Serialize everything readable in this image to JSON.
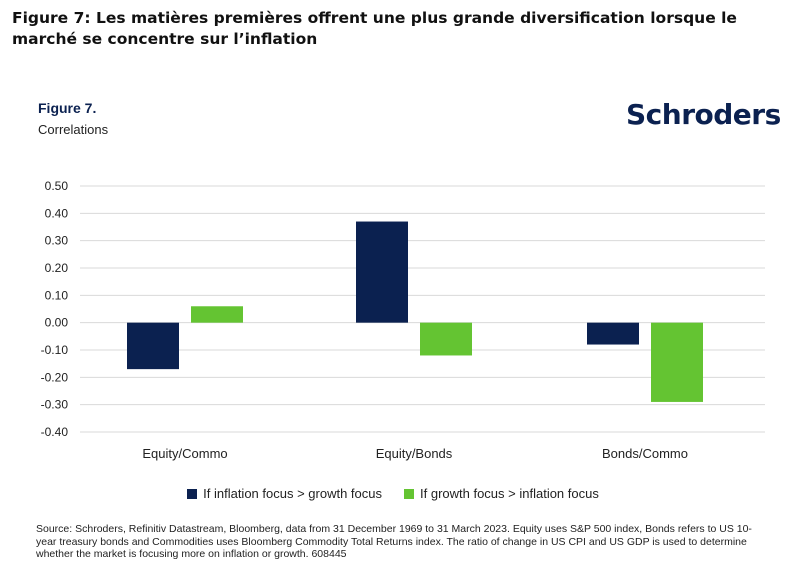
{
  "page_title": "Figure 7: Les matières premières offrent une plus grande diversification lorsque le marché se concentre sur l’inflation",
  "figure_label": "Figure 7.",
  "figure_subtitle": "Correlations",
  "brand": "Schroders",
  "colors": {
    "inflation": "#0b2150",
    "growth": "#64c432",
    "grid": "#d9d9d9",
    "brand": "#0b2150"
  },
  "chart_data": {
    "type": "bar",
    "title": "Correlations",
    "categories": [
      "Equity/Commo",
      "Equity/Bonds",
      "Bonds/Commo"
    ],
    "series": [
      {
        "name": "If inflation focus > growth focus",
        "values": [
          -0.17,
          0.37,
          -0.08
        ]
      },
      {
        "name": "If growth focus > inflation focus",
        "values": [
          0.06,
          -0.12,
          -0.29
        ]
      }
    ],
    "ylim": [
      -0.4,
      0.5
    ],
    "yticks": [
      "0.50",
      "0.40",
      "0.30",
      "0.20",
      "0.10",
      "0.00",
      "-0.10",
      "-0.20",
      "-0.30",
      "-0.40"
    ],
    "xlabel": "",
    "ylabel": "",
    "grid": true,
    "legend": "bottom-center"
  },
  "source_text": "Source: Schroders, Refinitiv Datastream, Bloomberg, data from 31 December 1969 to 31 March 2023. Equity uses S&P 500 index, Bonds refers to US 10-year treasury bonds and Commodities uses Bloomberg Commodity Total Returns index. The ratio of change in US CPI and US GDP is used to determine whether the market is focusing more on inflation or growth. 608445"
}
